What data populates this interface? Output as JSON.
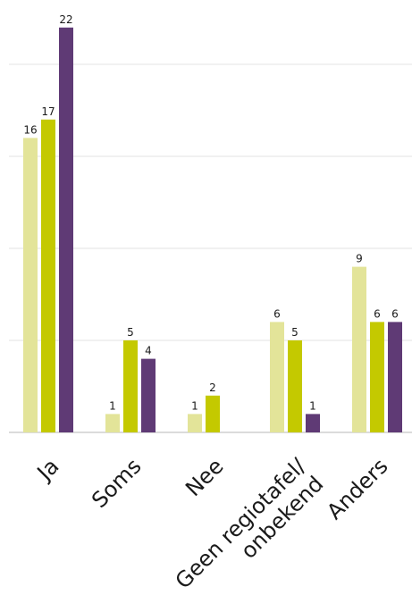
{
  "chart_data": {
    "type": "bar",
    "categories": [
      "Ja",
      "Soms",
      "Nee",
      "Geen regiotafel/ onbekend",
      "Anders"
    ],
    "category_lines": [
      [
        "Ja"
      ],
      [
        "Soms"
      ],
      [
        "Nee"
      ],
      [
        "Geen regiotafel/",
        "onbekend"
      ],
      [
        "Anders"
      ]
    ],
    "series": [
      {
        "values": [
          16,
          1,
          1,
          6,
          9
        ],
        "color": "#e3e499"
      },
      {
        "values": [
          17,
          5,
          2,
          5,
          6
        ],
        "color": "#c4c900"
      },
      {
        "values": [
          22,
          4,
          null,
          1,
          6
        ],
        "color": "#5f3a75"
      }
    ],
    "ylim": [
      0,
      24
    ],
    "gridlines": [
      0,
      5,
      10,
      15,
      20
    ],
    "grid": true,
    "legend": "none",
    "title": "",
    "xlabel": "",
    "ylabel": ""
  }
}
